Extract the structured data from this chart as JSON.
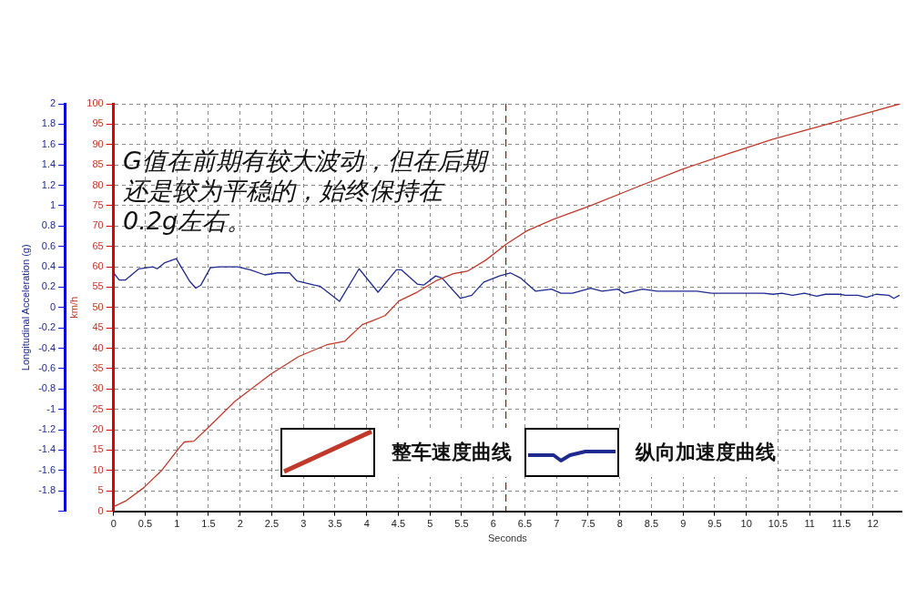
{
  "chart_data": {
    "type": "line",
    "xlabel": "Seconds",
    "ylabel": "km/h",
    "y2label": "Longitudinal Acceleration (g)",
    "annotations": [
      "G值在前期有较大波动，但在后期还是较为平稳的，始终保持在0.2g左右。"
    ],
    "xlim": [
      0,
      12.45
    ],
    "xticks": [
      0,
      0.5,
      1,
      1.5,
      2,
      2.5,
      3,
      3.5,
      4,
      4.5,
      5,
      5.5,
      6,
      6.5,
      7,
      7.5,
      8,
      8.5,
      9,
      9.5,
      10,
      10.5,
      11,
      11.5,
      12
    ],
    "ylim": [
      0,
      100
    ],
    "yticks": [
      0,
      5,
      10,
      15,
      20,
      25,
      30,
      35,
      40,
      45,
      50,
      55,
      60,
      65,
      70,
      75,
      80,
      85,
      90,
      95,
      100
    ],
    "y2lim": [
      -2,
      2
    ],
    "y2ticks": [
      {
        "value": -2,
        "label": null
      },
      -1.8,
      -1.6,
      -1.4,
      -1.2,
      -1,
      -0.8,
      -0.6,
      -0.4,
      -0.2,
      0,
      0.2,
      0.4,
      0.6,
      0.8,
      1,
      1.2,
      1.4,
      1.6,
      1.8,
      2
    ],
    "grid": true,
    "legend": "bottom",
    "line_style": "solid",
    "marker": "none",
    "ref_lines": [
      {
        "axis": "x",
        "value": 6.2,
        "color": "#8b1a1a",
        "line_style": "dashed"
      }
    ],
    "series": [
      {
        "name": "整车速度曲线",
        "color": "#c0392b",
        "x": [
          0,
          0.19,
          0.48,
          0.76,
          1.05,
          1.12,
          1.27,
          1.48,
          1.92,
          2.49,
          2.93,
          3.36,
          3.65,
          3.93,
          4.08,
          4.29,
          4.51,
          4.8,
          5.09,
          5.37,
          5.59,
          5.88,
          6.21,
          6.53,
          6.96,
          7.54,
          8.26,
          8.98,
          9.7,
          10.42,
          11.14,
          11.86,
          12.43
        ],
        "values": [
          1.1,
          2.5,
          5.8,
          10,
          15.8,
          17,
          17.2,
          20.3,
          27,
          33.7,
          38,
          40.8,
          41.7,
          45.8,
          46.7,
          48,
          51.6,
          53.8,
          56.5,
          58.3,
          58.9,
          61.6,
          65.6,
          68.8,
          71.7,
          75,
          79.5,
          83.9,
          87.7,
          91.3,
          94.4,
          97.5,
          100
        ]
      },
      {
        "name": "纵向加速度曲线",
        "color": "#1f2a8f",
        "axis": "y2",
        "x": [
          0,
          0.09,
          0.19,
          0.4,
          0.62,
          0.69,
          0.81,
          0.99,
          1.2,
          1.3,
          1.38,
          1.53,
          1.67,
          1.96,
          2.16,
          2.39,
          2.59,
          2.78,
          2.9,
          3.17,
          3.26,
          3.57,
          3.88,
          4.18,
          4.47,
          4.55,
          4.8,
          4.9,
          5.09,
          5.19,
          5.48,
          5.66,
          5.85,
          6.1,
          6.27,
          6.43,
          6.67,
          6.92,
          7.07,
          7.25,
          7.54,
          7.72,
          7.97,
          8.07,
          8.36,
          8.59,
          9.22,
          9.45,
          9.94,
          10.27,
          10.42,
          10.56,
          10.73,
          10.92,
          11.11,
          11.25,
          11.47,
          11.57,
          11.76,
          11.9,
          12.05,
          12.25,
          12.33,
          12.42
        ],
        "values": [
          0.34,
          0.27,
          0.27,
          0.38,
          0.4,
          0.38,
          0.44,
          0.48,
          0.26,
          0.19,
          0.22,
          0.39,
          0.4,
          0.4,
          0.37,
          0.32,
          0.34,
          0.34,
          0.26,
          0.22,
          0.21,
          0.06,
          0.38,
          0.15,
          0.37,
          0.37,
          0.23,
          0.22,
          0.31,
          0.29,
          0.09,
          0.12,
          0.25,
          0.31,
          0.34,
          0.29,
          0.16,
          0.18,
          0.14,
          0.14,
          0.19,
          0.16,
          0.18,
          0.14,
          0.18,
          0.16,
          0.16,
          0.14,
          0.14,
          0.14,
          0.13,
          0.14,
          0.12,
          0.14,
          0.11,
          0.13,
          0.13,
          0.12,
          0.12,
          0.1,
          0.13,
          0.12,
          0.09,
          0.12
        ]
      }
    ]
  }
}
